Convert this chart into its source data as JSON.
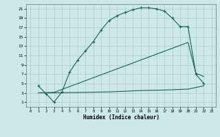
{
  "xlabel": "Humidex (Indice chaleur)",
  "bg_color": "#cce8e8",
  "grid_color": "#aacccc",
  "line_color": "#1a5f50",
  "xlim": [
    -0.5,
    23.5
  ],
  "ylim": [
    0,
    22
  ],
  "xticks": [
    0,
    1,
    2,
    3,
    4,
    5,
    6,
    7,
    8,
    9,
    10,
    11,
    12,
    13,
    14,
    15,
    16,
    17,
    18,
    19,
    20,
    21,
    22,
    23
  ],
  "yticks": [
    1,
    3,
    5,
    7,
    9,
    11,
    13,
    15,
    17,
    19,
    21
  ],
  "curve1_x": [
    1,
    2,
    3,
    4,
    5,
    6,
    7,
    8,
    9,
    10,
    11,
    12,
    13,
    14,
    15,
    16,
    17,
    18,
    19,
    20,
    21,
    22
  ],
  "curve1_y": [
    4.5,
    2.8,
    1.0,
    3.2,
    7.5,
    10.0,
    12.0,
    14.0,
    16.5,
    18.5,
    19.5,
    20.2,
    20.8,
    21.2,
    21.2,
    21.0,
    20.5,
    19.0,
    17.2,
    17.2,
    7.0,
    5.0
  ],
  "curve2_x": [
    1,
    3,
    20,
    21,
    22
  ],
  "curve2_y": [
    3.0,
    3.1,
    13.8,
    7.2,
    6.5
  ],
  "curve3_x": [
    1,
    3,
    10,
    14,
    17,
    20,
    22
  ],
  "curve3_y": [
    3.0,
    3.0,
    3.2,
    3.5,
    3.6,
    3.8,
    4.5
  ]
}
